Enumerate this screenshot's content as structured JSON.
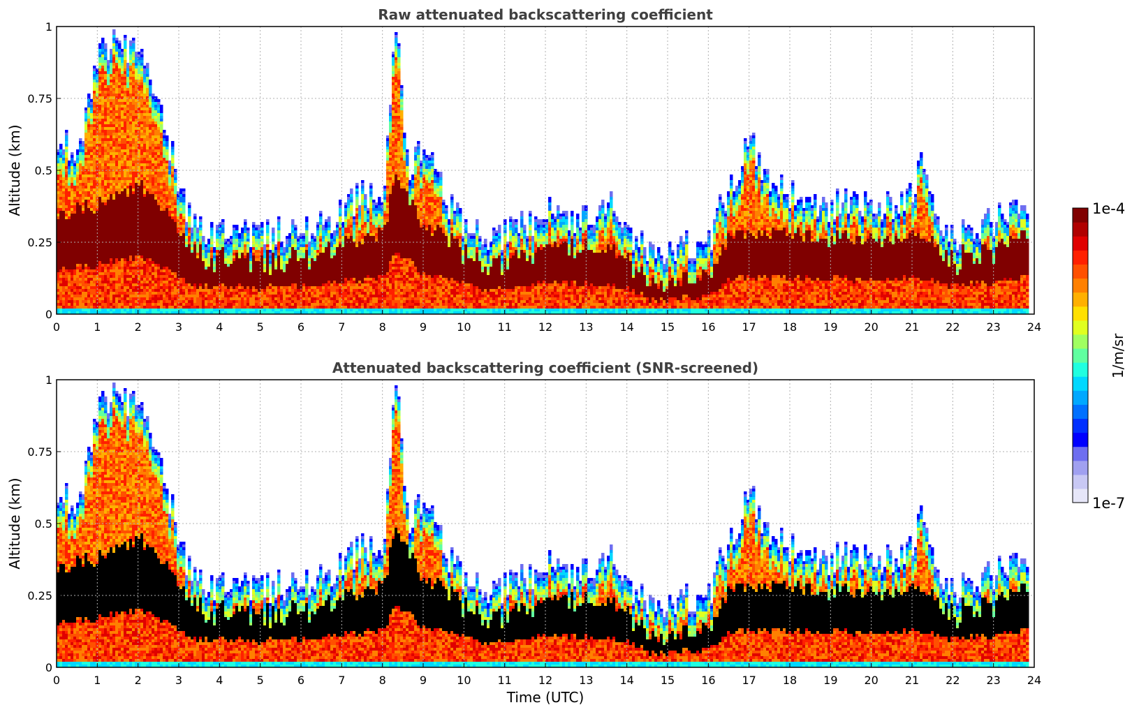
{
  "chart_data": [
    {
      "type": "heatmap",
      "title": "Raw attenuated backscattering coefficient",
      "xlabel": "",
      "ylabel": "Altitude (km)",
      "xlim": [
        0,
        24
      ],
      "ylim": [
        0,
        1
      ],
      "xticks": [
        0,
        1,
        2,
        3,
        4,
        5,
        6,
        7,
        8,
        9,
        10,
        11,
        12,
        13,
        14,
        15,
        16,
        17,
        18,
        19,
        20,
        21,
        22,
        23,
        24
      ],
      "yticks": [
        0,
        0.25,
        0.5,
        0.75,
        1
      ],
      "ytick_labels": [
        "0",
        "0.25",
        "0.5",
        "0.75",
        "1"
      ],
      "grid": true,
      "boundary_layer_top_km": [
        [
          0,
          0.6
        ],
        [
          0.5,
          0.55
        ],
        [
          1,
          0.9
        ],
        [
          1.5,
          0.95
        ],
        [
          2,
          0.9
        ],
        [
          2.5,
          0.7
        ],
        [
          3,
          0.45
        ],
        [
          3.3,
          0.3
        ],
        [
          4,
          0.27
        ],
        [
          5,
          0.28
        ],
        [
          6,
          0.3
        ],
        [
          7,
          0.35
        ],
        [
          7.5,
          0.42
        ],
        [
          8,
          0.45
        ],
        [
          8.3,
          1.0
        ],
        [
          8.6,
          0.5
        ],
        [
          9,
          0.6
        ],
        [
          9.5,
          0.4
        ],
        [
          10,
          0.3
        ],
        [
          10.5,
          0.25
        ],
        [
          11,
          0.28
        ],
        [
          12,
          0.35
        ],
        [
          13,
          0.33
        ],
        [
          13.7,
          0.38
        ],
        [
          14,
          0.3
        ],
        [
          14.5,
          0.2
        ],
        [
          15,
          0.2
        ],
        [
          15.5,
          0.24
        ],
        [
          16,
          0.26
        ],
        [
          16.5,
          0.45
        ],
        [
          17,
          0.6
        ],
        [
          17.5,
          0.45
        ],
        [
          18,
          0.42
        ],
        [
          19,
          0.38
        ],
        [
          20,
          0.38
        ],
        [
          21,
          0.4
        ],
        [
          21.2,
          0.55
        ],
        [
          21.6,
          0.35
        ],
        [
          22,
          0.28
        ],
        [
          23,
          0.32
        ],
        [
          23.8,
          0.4
        ]
      ],
      "dense_layer_top_km": [
        [
          0,
          0.35
        ],
        [
          1,
          0.38
        ],
        [
          2,
          0.45
        ],
        [
          3,
          0.3
        ],
        [
          3.3,
          0.22
        ],
        [
          5,
          0.2
        ],
        [
          6,
          0.22
        ],
        [
          7,
          0.25
        ],
        [
          8,
          0.28
        ],
        [
          8.3,
          0.5
        ],
        [
          9,
          0.3
        ],
        [
          10,
          0.25
        ],
        [
          10.5,
          0.18
        ],
        [
          12,
          0.24
        ],
        [
          13,
          0.24
        ],
        [
          14,
          0.2
        ],
        [
          14.5,
          0.12
        ],
        [
          15,
          0.11
        ],
        [
          16,
          0.15
        ],
        [
          16.5,
          0.28
        ],
        [
          18,
          0.28
        ],
        [
          20,
          0.27
        ],
        [
          21,
          0.28
        ],
        [
          22,
          0.22
        ],
        [
          23,
          0.25
        ],
        [
          23.8,
          0.28
        ]
      ]
    },
    {
      "type": "heatmap",
      "title": "Attenuated backscattering coefficient (SNR-screened)",
      "xlabel": "Time (UTC)",
      "ylabel": "Altitude (km)",
      "xlim": [
        0,
        24
      ],
      "ylim": [
        0,
        1
      ],
      "xticks": [
        0,
        1,
        2,
        3,
        4,
        5,
        6,
        7,
        8,
        9,
        10,
        11,
        12,
        13,
        14,
        15,
        16,
        17,
        18,
        19,
        20,
        21,
        22,
        23,
        24
      ],
      "yticks": [
        0,
        0.25,
        0.5,
        0.75,
        1
      ],
      "ytick_labels": [
        "0",
        "0.25",
        "0.5",
        "0.75",
        "1"
      ],
      "grid": true,
      "screened_region": "black"
    }
  ],
  "colorbar": {
    "label": "1/m/sr",
    "max_label": "1e-4",
    "min_label": "1e-7",
    "colors": [
      "#e6e6f8",
      "#c8c8f4",
      "#a0a0f0",
      "#6e6ef0",
      "#0000ff",
      "#0030ff",
      "#0070ff",
      "#00a8ff",
      "#00d8ff",
      "#20ffe0",
      "#60ffa0",
      "#a0ff60",
      "#e0ff20",
      "#ffe000",
      "#ffb000",
      "#ff8000",
      "#ff5000",
      "#ff2000",
      "#e00000",
      "#b00000",
      "#800000"
    ]
  }
}
